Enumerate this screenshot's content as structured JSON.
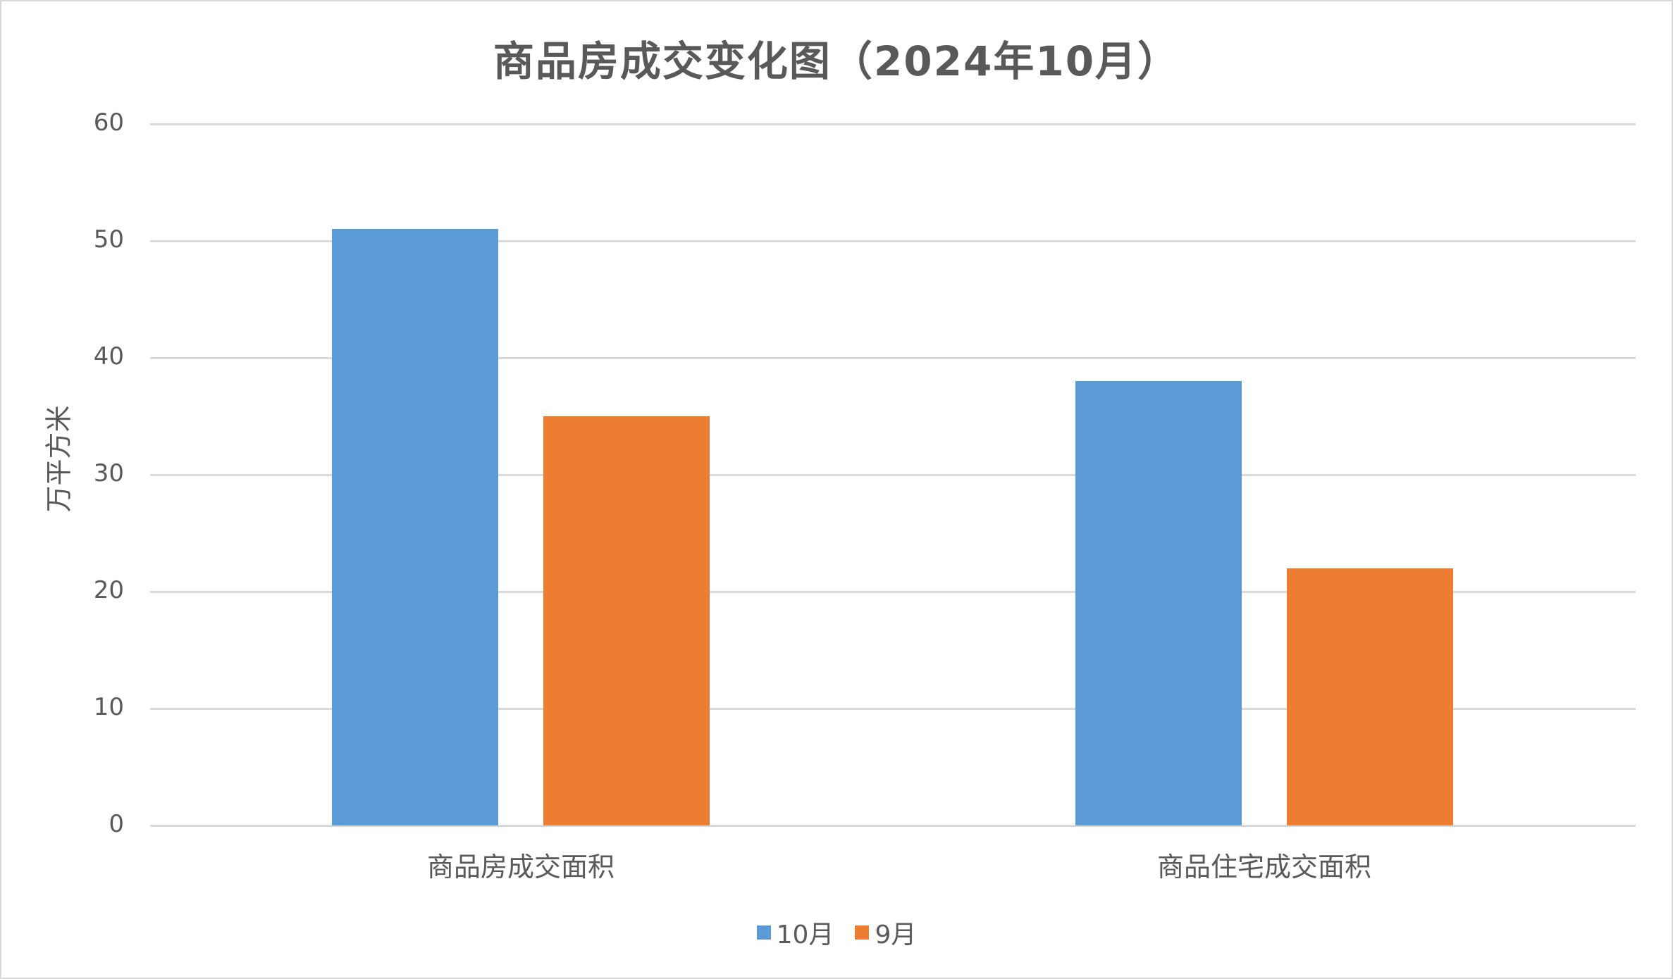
{
  "chart_data": {
    "type": "bar",
    "title": "商品房成交变化图（2024年10月）",
    "xlabel": "",
    "ylabel": "万平方米",
    "ylim": [
      0,
      60
    ],
    "yticks": [
      "0",
      "10",
      "20",
      "30",
      "40",
      "50",
      "60"
    ],
    "grid": true,
    "legend_position": "bottom",
    "categories": [
      "商品房成交面积",
      "商品住宅成交面积"
    ],
    "series": [
      {
        "name": "10月",
        "color": "#5b9bd5",
        "values": [
          51,
          38
        ]
      },
      {
        "name": "9月",
        "color": "#ed7d31",
        "values": [
          35,
          22
        ]
      }
    ]
  }
}
